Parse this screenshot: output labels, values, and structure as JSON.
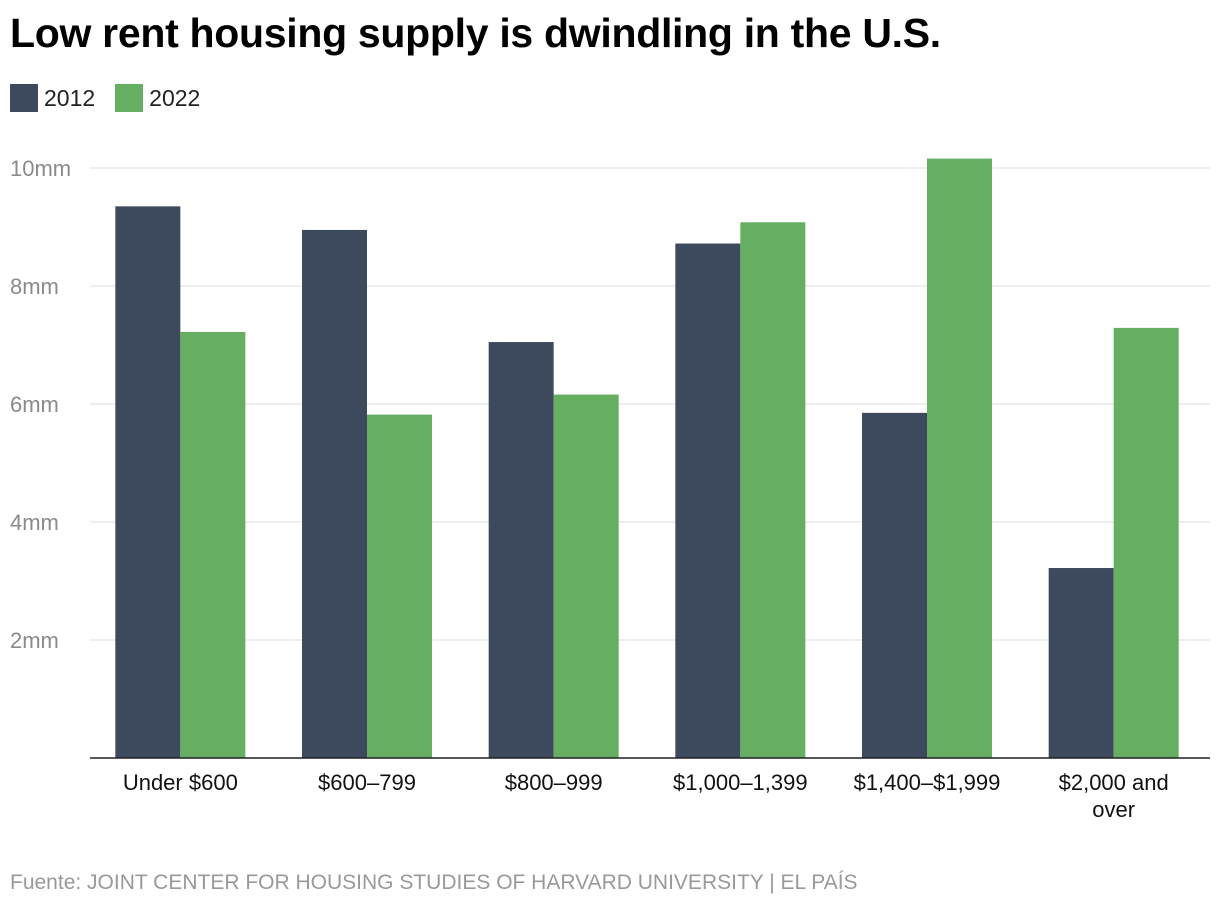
{
  "chart_data": {
    "type": "bar",
    "title": "Low rent housing supply is dwindling in the U.S.",
    "categories": [
      [
        "Under $600"
      ],
      [
        "$600–799"
      ],
      [
        "$800–999"
      ],
      [
        "$1,000–1,399"
      ],
      [
        "$1,400–$1,999"
      ],
      [
        "$2,000 and",
        "over"
      ]
    ],
    "series": [
      {
        "name": "2012",
        "color": "#3d4a5e",
        "values": [
          9.35,
          8.95,
          7.05,
          8.72,
          5.85,
          3.22
        ]
      },
      {
        "name": "2022",
        "color": "#66ae62",
        "values": [
          7.22,
          5.82,
          6.16,
          9.08,
          10.16,
          7.29
        ]
      }
    ],
    "ylim": [
      0,
      10
    ],
    "yticks": [
      2,
      4,
      6,
      8,
      10
    ],
    "ytick_suffix": "mm",
    "grid": true,
    "legend_position": "top-left",
    "source": "Fuente: JOINT CENTER FOR HOUSING STUDIES OF HARVARD UNIVERSITY | EL PAÍS"
  }
}
